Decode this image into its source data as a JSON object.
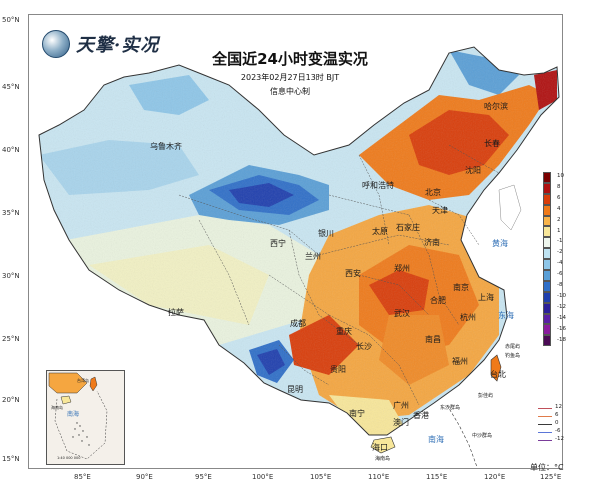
{
  "header": {
    "logo_text": "天擎·实况",
    "title": "全国近24小时变温实况",
    "subtitle": "2023年02月27日13时 BJT",
    "agency": "信息中心制"
  },
  "axes": {
    "lat_labels": [
      "50°N",
      "45°N",
      "40°N",
      "35°N",
      "30°N",
      "25°N",
      "20°N",
      "15°N"
    ],
    "lon_labels": [
      "85°E",
      "90°E",
      "95°E",
      "100°E",
      "105°E",
      "110°E",
      "115°E",
      "120°E",
      "125°E"
    ]
  },
  "cities": [
    "哈尔滨",
    "长春",
    "沈阳",
    "乌鲁木齐",
    "呼和浩特",
    "北京",
    "天津",
    "石家庄",
    "太原",
    "银川",
    "济南",
    "西宁",
    "兰州",
    "郑州",
    "西安",
    "南京",
    "合肥",
    "上海",
    "成都",
    "武汉",
    "杭州",
    "重庆",
    "拉萨",
    "长沙",
    "南昌",
    "贵阳",
    "福州",
    "昆明",
    "台北",
    "广州",
    "南宁",
    "香港",
    "澳门",
    "海口"
  ],
  "seas": [
    "黄海",
    "东海",
    "南海"
  ],
  "islands": [
    "赤尾屿",
    "钓鱼岛",
    "彭佳屿",
    "东沙群岛",
    "中沙群岛",
    "海南岛"
  ],
  "inset": {
    "labels": [
      "台湾岛",
      "海南岛",
      "南海"
    ],
    "scale": "1:40 000 000"
  },
  "legend": {
    "labels": [
      "10",
      "8",
      "6",
      "4",
      "2",
      "1",
      "-1",
      "-2",
      "-4",
      "-6",
      "-8",
      "-10",
      "-12",
      "-14",
      "-16",
      "-18"
    ],
    "colors": [
      "#7a0000",
      "#b01010",
      "#d93d0a",
      "#ef7a1a",
      "#f9b44a",
      "#f8e79a",
      "#eef6ee",
      "#bfe3f2",
      "#8ec6e8",
      "#5a9fd6",
      "#2f6fc8",
      "#1f3fae",
      "#2b1f9a",
      "#5a1fa6",
      "#8a1c9e",
      "#4b0a55"
    ],
    "isotherm_labels": [
      "12",
      "6",
      "0",
      "-6",
      "-12"
    ],
    "isotherm_colors": [
      "#c0505a",
      "#e07b4a",
      "#3a3a3a",
      "#5b76d8",
      "#7a3c9a"
    ],
    "unit": "单位：°C"
  }
}
